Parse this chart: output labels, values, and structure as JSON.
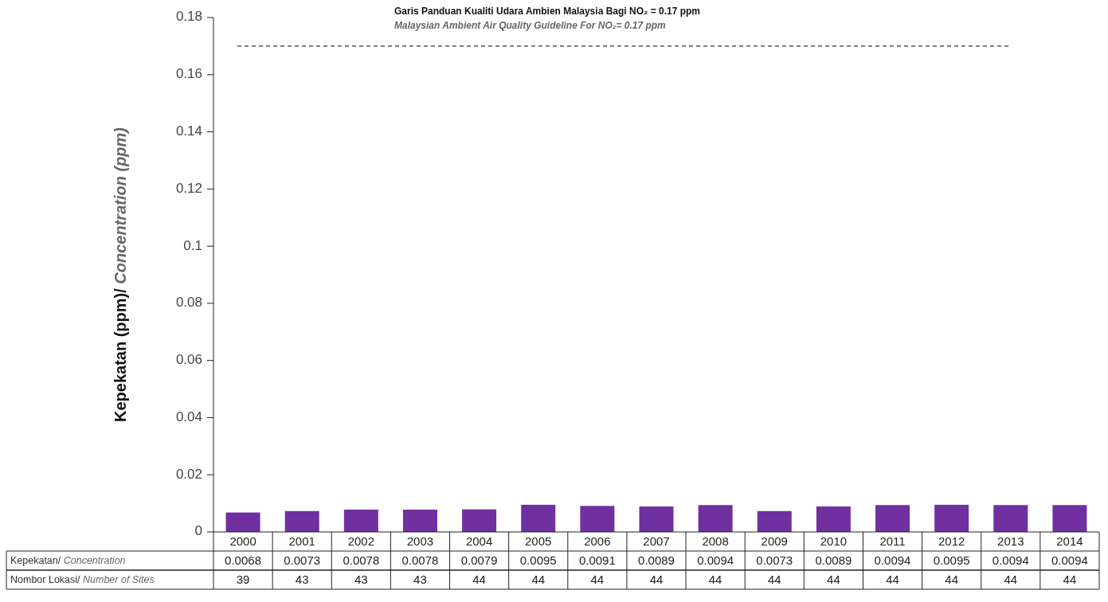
{
  "chart_data": {
    "type": "bar",
    "ylabel": "Kepekatan (ppm)/ Concentration (ppm)",
    "categories": [
      "2000",
      "2001",
      "2002",
      "2003",
      "2004",
      "2005",
      "2006",
      "2007",
      "2008",
      "2009",
      "2010",
      "2011",
      "2012",
      "2013",
      "2014"
    ],
    "series": [
      {
        "color": "#7030a0",
        "values": [
          0.0068,
          0.0073,
          0.0078,
          0.0078,
          0.0079,
          0.0095,
          0.0091,
          0.0089,
          0.0094,
          0.0073,
          0.0089,
          0.0094,
          0.0095,
          0.0094,
          0.0094
        ]
      }
    ],
    "data_labels": true,
    "ylim": [
      0,
      0.18
    ],
    "yticks": [
      0,
      0.02,
      0.04,
      0.06,
      0.08,
      0.1,
      0.12,
      0.14,
      0.16,
      0.18
    ],
    "ref_lines": [
      {
        "axis": "y",
        "value": 0.17,
        "label": "Garis Panduan Kualiti Udara Ambien Malaysia Bagi NO₂ = 0.17 ppm",
        "line_style": "dashed",
        "color": "#333333"
      }
    ],
    "annotations": [
      "Malaysian Ambient Air Quality Guideline For NO₂= 0.17 ppm",
      "Kepekatan/ Concentration",
      "Nombor Lokasi/ Number of Sites",
      "39",
      "43",
      "43",
      "43",
      "44",
      "44",
      "44",
      "44",
      "44",
      "44",
      "44",
      "44",
      "44",
      "44",
      "44"
    ]
  }
}
